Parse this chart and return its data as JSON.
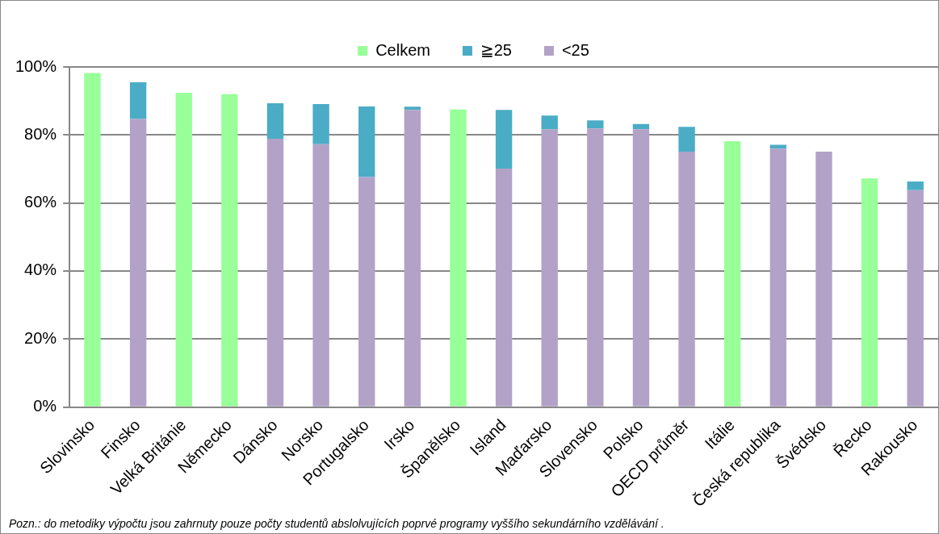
{
  "chart_data": {
    "type": "bar",
    "stacked": true,
    "categories": [
      "Slovinsko",
      "Finsko",
      "Velká Británie",
      "Německo",
      "Dánsko",
      "Norsko",
      "Portugalsko",
      "Irsko",
      "Španělsko",
      "Island",
      "Maďarsko",
      "Slovensko",
      "Polsko",
      "OECD průměr",
      "Itálie",
      "Česká republika",
      "Švédsko",
      "Řecko",
      "Rakousko"
    ],
    "series": [
      {
        "name": "<25",
        "color": "#b2a2c7",
        "values": [
          null,
          84.7,
          null,
          null,
          78.9,
          77.3,
          67.6,
          87.4,
          null,
          70.1,
          81.7,
          81.9,
          81.7,
          75.1,
          null,
          76.0,
          75.1,
          null,
          63.8
        ]
      },
      {
        "name": "≧25",
        "color": "#4bacc6",
        "values": [
          null,
          10.8,
          null,
          null,
          10.4,
          11.8,
          20.8,
          0.9,
          null,
          17.3,
          4.0,
          2.4,
          1.5,
          7.3,
          null,
          1.1,
          null,
          null,
          2.5
        ]
      },
      {
        "name": "Celkem",
        "color": "#99ff99",
        "values": [
          98.2,
          null,
          92.4,
          92.0,
          null,
          null,
          null,
          null,
          87.5,
          null,
          null,
          null,
          null,
          null,
          78.2,
          null,
          null,
          67.2,
          null
        ]
      }
    ],
    "ylim": [
      0,
      100
    ],
    "yticks": [
      {
        "value": 0,
        "label": "0%"
      },
      {
        "value": 20,
        "label": "20%"
      },
      {
        "value": 40,
        "label": "40%"
      },
      {
        "value": 60,
        "label": "60%"
      },
      {
        "value": 80,
        "label": "80%"
      },
      {
        "value": 100,
        "label": "100%"
      }
    ],
    "grid": "y",
    "legend": "top",
    "annotations": [
      "Pozn.:  do metodiky výpočtu jsou zahrnuty pouze počty studentů abslolvujících poprvé programy vyššího sekundárního vzdělávání ."
    ]
  }
}
